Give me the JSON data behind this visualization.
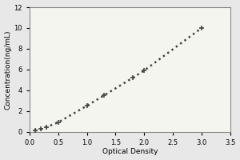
{
  "x_data": [
    0.1,
    0.2,
    0.3,
    0.5,
    1.0,
    1.3,
    1.8,
    2.0,
    3.0
  ],
  "y_data": [
    0.1,
    0.25,
    0.45,
    0.9,
    2.5,
    3.5,
    5.2,
    5.9,
    10.0
  ],
  "xlabel": "Optical Density",
  "ylabel": "Concentration(ng/mL)",
  "xlim": [
    0,
    3.5
  ],
  "ylim": [
    0,
    12
  ],
  "xticks": [
    0,
    0.5,
    1,
    1.5,
    2,
    2.5,
    3,
    3.5
  ],
  "yticks": [
    0,
    2,
    4,
    6,
    8,
    10,
    12
  ],
  "line_color": "#444444",
  "marker": "+",
  "marker_size": 5,
  "marker_linewidth": 1.2,
  "linestyle": "dotted",
  "linewidth": 1.8,
  "fig_bg_color": "#e8e8e8",
  "plot_bg_color": "#f5f5f0",
  "label_fontsize": 6.5,
  "tick_fontsize": 6,
  "spine_color": "#888888",
  "spine_linewidth": 0.8
}
